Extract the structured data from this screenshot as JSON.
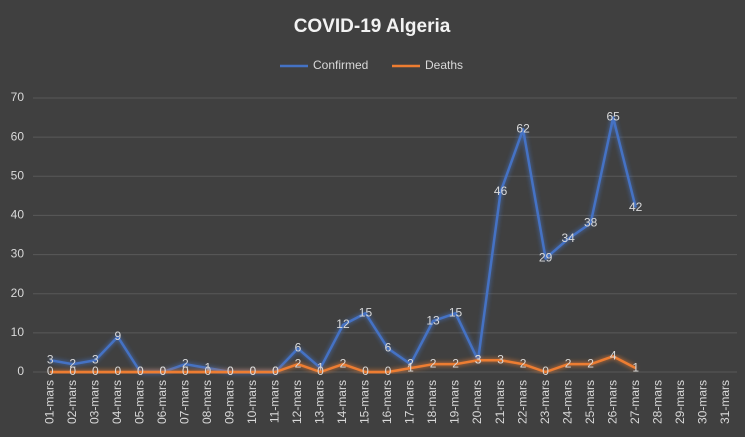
{
  "chart_data": {
    "type": "line",
    "title": "COVID-19 Algeria",
    "categories": [
      "01-mars",
      "02-mars",
      "03-mars",
      "04-mars",
      "05-mars",
      "06-mars",
      "07-mars",
      "08-mars",
      "09-mars",
      "10-mars",
      "11-mars",
      "12-mars",
      "13-mars",
      "14-mars",
      "15-mars",
      "16-mars",
      "17-mars",
      "18-mars",
      "19-mars",
      "20-mars",
      "21-mars",
      "22-mars",
      "23-mars",
      "24-mars",
      "25-mars",
      "26-mars",
      "27-mars",
      "28-mars",
      "29-mars",
      "30-mars",
      "31-mars"
    ],
    "series": [
      {
        "name": "Confirmed",
        "color": "#4472c4",
        "values": [
          3,
          2,
          3,
          9,
          0,
          0,
          2,
          1,
          0,
          0,
          0,
          6,
          1,
          12,
          15,
          6,
          2,
          13,
          15,
          3,
          46,
          62,
          29,
          34,
          38,
          65,
          42,
          null,
          null,
          null,
          null
        ]
      },
      {
        "name": "Deaths",
        "color": "#ed7d31",
        "values": [
          0,
          0,
          0,
          0,
          0,
          0,
          0,
          0,
          0,
          0,
          0,
          2,
          0,
          2,
          0,
          0,
          1,
          2,
          2,
          3,
          3,
          2,
          0,
          2,
          2,
          4,
          1,
          null,
          null,
          null,
          null
        ]
      }
    ],
    "ylim": [
      0,
      70
    ],
    "yticks": [
      0,
      10,
      20,
      30,
      40,
      50,
      60,
      70
    ],
    "grid": true,
    "legend": "top"
  }
}
